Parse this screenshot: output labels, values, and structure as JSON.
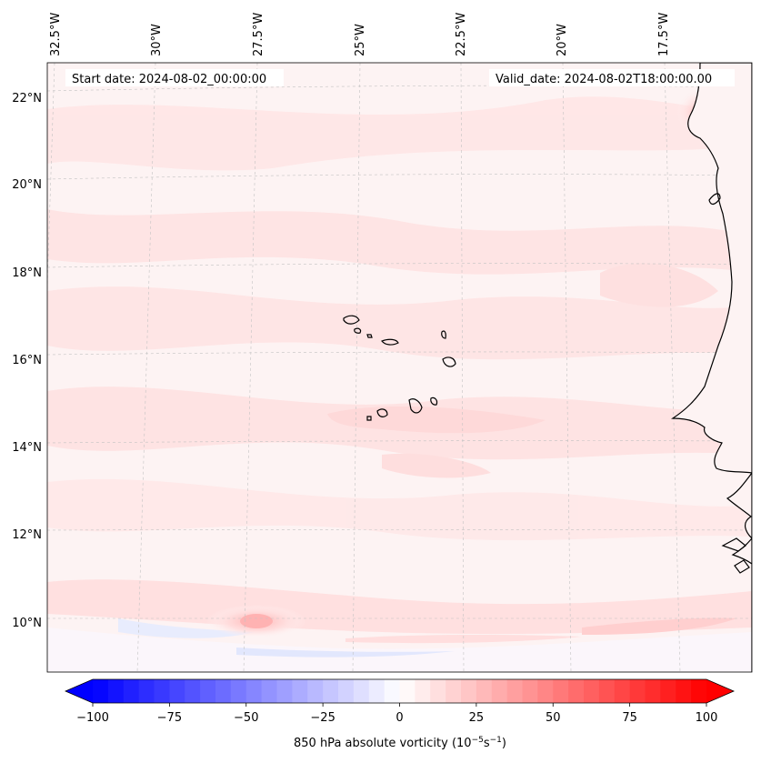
{
  "header": {
    "start_date": "Start date: 2024-08-02_00:00:00",
    "valid_date": "Valid_date: 2024-08-02T18:00:00.00"
  },
  "lon_labels": [
    "32.5°W",
    "30°W",
    "27.5°W",
    "25°W",
    "22.5°W",
    "20°W",
    "17.5°W"
  ],
  "lat_labels": [
    "22°N",
    "20°N",
    "18°N",
    "16°N",
    "14°N",
    "12°N",
    "10°N"
  ],
  "colorbar": {
    "label": "850 hPa absolute vorticity (10",
    "label_exp1": "−5",
    "label_mid": "s",
    "label_exp2": "−1",
    "label_end": ")",
    "ticks": [
      "−100",
      "−75",
      "−50",
      "−25",
      "0",
      "25",
      "50",
      "75",
      "100"
    ],
    "vmin": -100,
    "vmax": 100,
    "levels": 40
  },
  "colors": {
    "negative_max": "#0000ff",
    "positive_max": "#ff0000",
    "neutral": "#ffffff",
    "coast": "#000000",
    "grid": "#b0b0b0"
  }
}
